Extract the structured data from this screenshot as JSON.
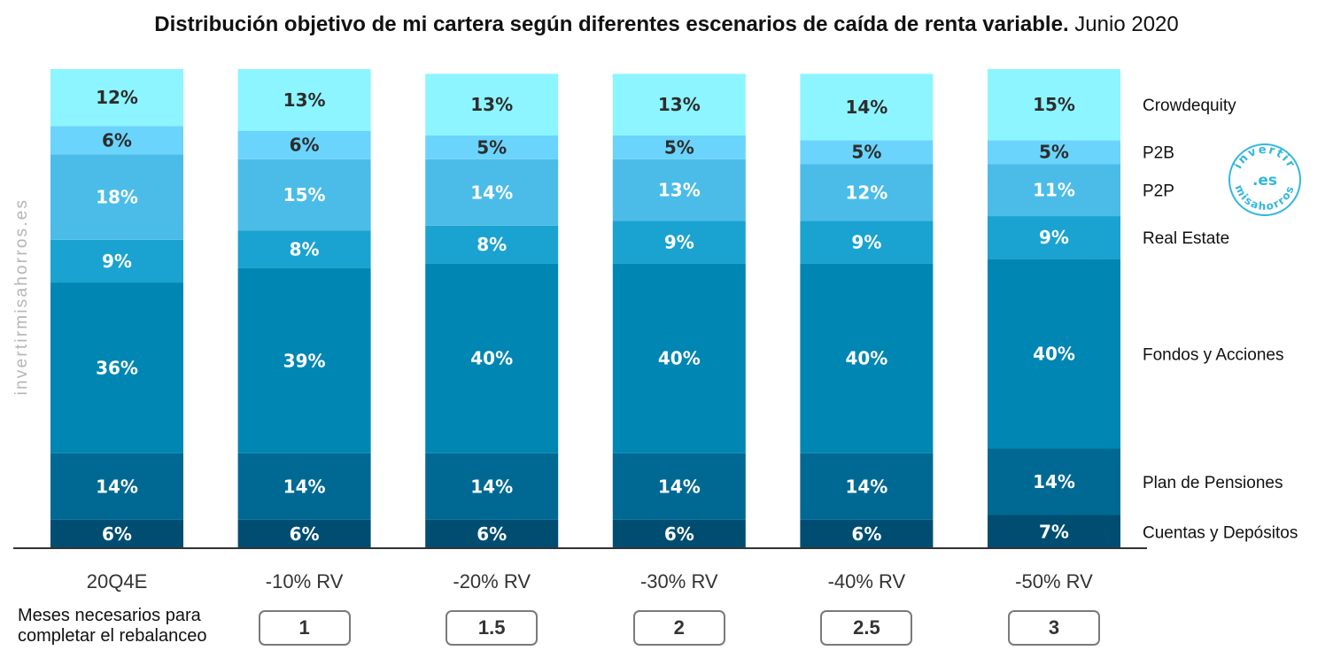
{
  "title": {
    "bold": "Distribución objetivo de mi cartera según diferentes escenarios de caída de renta variable.",
    "normal": "Junio 2020"
  },
  "watermark": "invertirmisahorros.es",
  "logo": {
    "top_text": "invertir",
    "middle_text": ".es",
    "bottom_text": "misahorros",
    "color": "#33b8dc"
  },
  "months": {
    "label": "Meses necesarios para completar el rebalanceo",
    "values": [
      "1",
      "1.5",
      "2",
      "2.5",
      "3"
    ]
  },
  "chart_data": {
    "type": "bar",
    "stacked": true,
    "unit": "%",
    "categories": [
      "20Q4E",
      "-10% RV",
      "-20% RV",
      "-30% RV",
      "-40% RV",
      "-50% RV"
    ],
    "series": [
      {
        "name": "Cuentas y Depósitos",
        "color": "#004d72",
        "values": [
          6,
          6,
          6,
          6,
          6,
          7
        ]
      },
      {
        "name": "Plan de Pensiones",
        "color": "#006993",
        "values": [
          14,
          14,
          14,
          14,
          14,
          14
        ]
      },
      {
        "name": "Fondos y Acciones",
        "color": "#0086b2",
        "values": [
          36,
          39,
          40,
          40,
          40,
          40
        ]
      },
      {
        "name": "Real Estate",
        "color": "#1aa3d0",
        "values": [
          9,
          8,
          8,
          9,
          9,
          9
        ]
      },
      {
        "name": "P2P",
        "color": "#4bbce8",
        "values": [
          18,
          15,
          14,
          13,
          12,
          11
        ]
      },
      {
        "name": "P2B",
        "color": "#6bd4fc",
        "values": [
          6,
          6,
          5,
          5,
          5,
          5
        ]
      },
      {
        "name": "Crowdequity",
        "color": "#8df5ff",
        "values": [
          12,
          13,
          13,
          13,
          14,
          15
        ]
      }
    ],
    "ylim": [
      0,
      101
    ],
    "grid": false,
    "legend": "right"
  }
}
